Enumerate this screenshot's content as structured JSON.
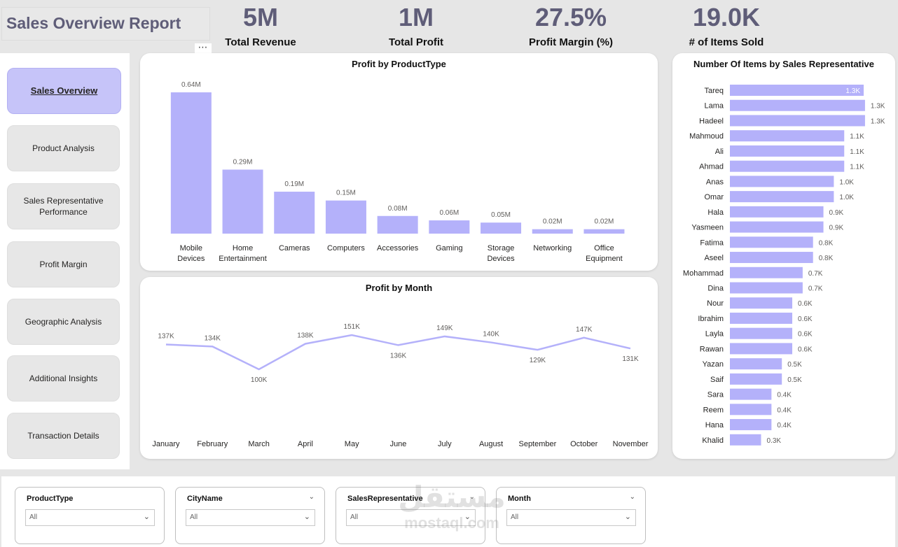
{
  "header": {
    "title": "Sales Overview Report",
    "more_icon": "⋯"
  },
  "kpis": [
    {
      "value": "5M",
      "label": "Total Revenue"
    },
    {
      "value": "1M",
      "label": "Total Profit"
    },
    {
      "value": "27.5%",
      "label": "Profit Margin (%)"
    },
    {
      "value": "19.0K",
      "label": "# of Items Sold"
    }
  ],
  "nav": [
    {
      "label": "Sales Overview",
      "active": true
    },
    {
      "label": "Product Analysis"
    },
    {
      "label": "Sales Representative Performance"
    },
    {
      "label": "Profit Margin"
    },
    {
      "label": "Geographic Analysis"
    },
    {
      "label": "Additional Insights"
    },
    {
      "label": "Transaction Details"
    }
  ],
  "colors": {
    "bar": "#b4b1fa",
    "line": "#b4b1fa",
    "title_text": "#5f5d78",
    "active_nav": "#c6c4f9"
  },
  "chart_data": [
    {
      "type": "bar",
      "title": "Profit by ProductType",
      "categories": [
        "Mobile Devices",
        "Home Entertainment",
        "Cameras",
        "Computers",
        "Accessories",
        "Gaming",
        "Storage Devices",
        "Networking",
        "Office Equipment"
      ],
      "category_lines": [
        [
          "Mobile",
          "Devices"
        ],
        [
          "Home",
          "Entertainment"
        ],
        [
          "Cameras"
        ],
        [
          "Computers"
        ],
        [
          "Accessories"
        ],
        [
          "Gaming"
        ],
        [
          "Storage",
          "Devices"
        ],
        [
          "Networking"
        ],
        [
          "Office",
          "Equipment"
        ]
      ],
      "values": [
        0.64,
        0.29,
        0.19,
        0.15,
        0.08,
        0.06,
        0.05,
        0.02,
        0.02
      ],
      "labels": [
        "0.64M",
        "0.29M",
        "0.19M",
        "0.15M",
        "0.08M",
        "0.06M",
        "0.05M",
        "0.02M",
        "0.02M"
      ],
      "unit": "M",
      "ylim": [
        0,
        0.64
      ]
    },
    {
      "type": "line",
      "title": "Profit by Month",
      "x": [
        "January",
        "February",
        "March",
        "April",
        "May",
        "June",
        "July",
        "August",
        "September",
        "October",
        "November"
      ],
      "values": [
        137,
        134,
        100,
        138,
        151,
        136,
        149,
        140,
        129,
        147,
        131
      ],
      "labels": [
        "137K",
        "134K",
        "100K",
        "138K",
        "151K",
        "136K",
        "149K",
        "140K",
        "129K",
        "147K",
        "131K"
      ],
      "label_pos": [
        "above",
        "above",
        "below",
        "above",
        "above",
        "below",
        "above",
        "above",
        "below",
        "above",
        "below"
      ],
      "unit": "K"
    },
    {
      "type": "bar",
      "orientation": "horizontal",
      "title": "Number Of Items by Sales Representative",
      "categories": [
        "Tareq",
        "Lama",
        "Hadeel",
        "Mahmoud",
        "Ali",
        "Ahmad",
        "Anas",
        "Omar",
        "Hala",
        "Yasmeen",
        "Fatima",
        "Aseel",
        "Mohammad",
        "Dina",
        "Nour",
        "Ibrahim",
        "Layla",
        "Rawan",
        "Yazan",
        "Saif",
        "Sara",
        "Reem",
        "Hana",
        "Khalid"
      ],
      "values": [
        1.3,
        1.3,
        1.3,
        1.1,
        1.1,
        1.1,
        1.0,
        1.0,
        0.9,
        0.9,
        0.8,
        0.8,
        0.7,
        0.7,
        0.6,
        0.6,
        0.6,
        0.6,
        0.5,
        0.5,
        0.4,
        0.4,
        0.4,
        0.3
      ],
      "labels": [
        "1.3K",
        "1.3K",
        "1.3K",
        "1.1K",
        "1.1K",
        "1.1K",
        "1.0K",
        "1.0K",
        "0.9K",
        "0.9K",
        "0.8K",
        "0.8K",
        "0.7K",
        "0.7K",
        "0.6K",
        "0.6K",
        "0.6K",
        "0.6K",
        "0.5K",
        "0.5K",
        "0.4K",
        "0.4K",
        "0.4K",
        "0.3K"
      ],
      "unit": "K"
    }
  ],
  "filters": [
    {
      "title": "ProductType",
      "value": "All"
    },
    {
      "title": "CityName",
      "value": "All"
    },
    {
      "title": "SalesRepresentative",
      "value": "All"
    },
    {
      "title": "Month",
      "value": "All"
    }
  ],
  "watermark": {
    "arabic": "مستقل",
    "latin": "mostaql.com"
  }
}
